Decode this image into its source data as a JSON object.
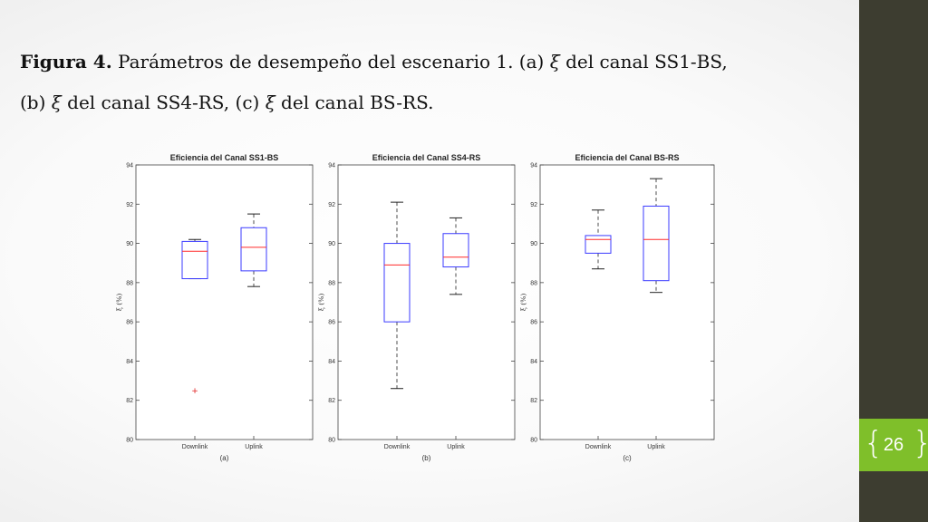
{
  "caption": {
    "bold": "Figura 4.",
    "line1_text": " Parámetros de desempeño del escenario 1. (a) ",
    "xi1": "ξ",
    "line1_end": " del canal SS1-BS,",
    "line2_start": "(b) ",
    "xi2": "ξ",
    "line2_mid": " del canal SS4-RS, (c) ",
    "xi3": "ξ",
    "line2_end": " del canal BS-RS."
  },
  "slide_number": "26",
  "colors": {
    "box": "#3b3bff",
    "median": "#ff2a2a",
    "outlier": "#e02020",
    "whisker": "#222222",
    "right_band": "#3d3d30",
    "slide_number_box": "#7fbf2a"
  },
  "chart_data": [
    {
      "type": "box",
      "title": "Eficiencia del Canal SS1-BS",
      "ylabel": "ξ (%)",
      "sublabel": "(a)",
      "ylim": [
        80,
        94
      ],
      "yticks": [
        80,
        82,
        84,
        86,
        88,
        90,
        92,
        94
      ],
      "categories": [
        "Downlink",
        "Uplink"
      ],
      "boxes": [
        {
          "min": 88.2,
          "q1": 88.2,
          "median": 89.6,
          "q3": 90.1,
          "max": 90.2,
          "outliers": [
            82.5
          ]
        },
        {
          "min": 87.8,
          "q1": 88.6,
          "median": 89.8,
          "q3": 90.8,
          "max": 91.5,
          "outliers": []
        }
      ]
    },
    {
      "type": "box",
      "title": "Eficiencia del Canal SS4-RS",
      "ylabel": "ξ (%)",
      "sublabel": "(b)",
      "ylim": [
        80,
        94
      ],
      "yticks": [
        80,
        82,
        84,
        86,
        88,
        90,
        92,
        94
      ],
      "categories": [
        "Downlink",
        "Uplink"
      ],
      "boxes": [
        {
          "min": 82.6,
          "q1": 86.0,
          "median": 88.9,
          "q3": 90.0,
          "max": 92.1,
          "outliers": []
        },
        {
          "min": 87.4,
          "q1": 88.8,
          "median": 89.3,
          "q3": 90.5,
          "max": 91.3,
          "outliers": []
        }
      ]
    },
    {
      "type": "box",
      "title": "Eficiencia del Canal BS-RS",
      "ylabel": "ξ (%)",
      "sublabel": "(c)",
      "ylim": [
        80,
        94
      ],
      "yticks": [
        80,
        82,
        84,
        86,
        88,
        90,
        92,
        94
      ],
      "categories": [
        "Downlink",
        "Uplink"
      ],
      "boxes": [
        {
          "min": 88.7,
          "q1": 89.5,
          "median": 90.2,
          "q3": 90.4,
          "max": 91.7,
          "outliers": []
        },
        {
          "min": 87.5,
          "q1": 88.1,
          "median": 90.2,
          "q3": 91.9,
          "max": 93.3,
          "outliers": []
        }
      ]
    }
  ]
}
